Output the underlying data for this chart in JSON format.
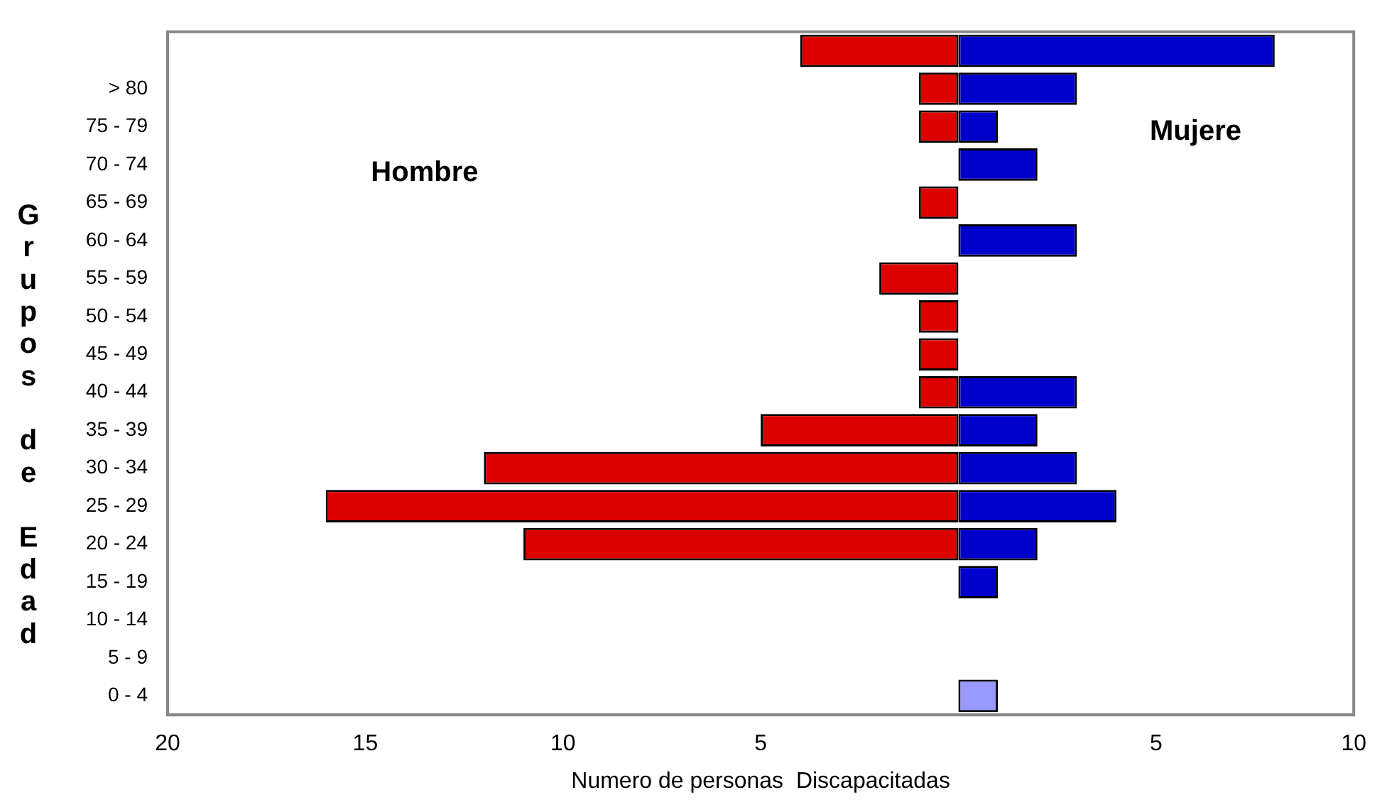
{
  "chart_data": {
    "type": "bar",
    "orientation": "horizontal",
    "stacked": true,
    "categories": [
      null,
      "> 80",
      "75 - 79",
      "70 - 74",
      "65 - 69",
      "60 - 64",
      "55 - 59",
      "50 - 54",
      "45 - 49",
      "40 - 44",
      "35 - 39",
      "30 - 34",
      "25 - 29",
      "20 - 24",
      "15 - 19",
      "10 - 14",
      "5 - 9",
      "0 - 4"
    ],
    "series": [
      {
        "color": "#dd0000",
        "values": [
          -4,
          -1,
          -1,
          0,
          -1,
          0,
          -2,
          -1,
          -1,
          -1,
          -5,
          -12,
          -16,
          -11,
          0,
          0,
          0,
          0
        ]
      },
      {
        "colors": [
          "#0000cc",
          "#0000cc",
          "#0000cc",
          "#0000cc",
          "#0000cc",
          "#0000cc",
          "#0000cc",
          "#0000cc",
          "#0000cc",
          "#0000cc",
          "#0000cc",
          "#0000cc",
          "#0000cc",
          "#0000cc",
          "#0000cc",
          "#0000cc",
          "#0000cc",
          "#9999ff"
        ],
        "values": [
          8,
          3,
          1,
          2,
          0,
          3,
          0,
          0,
          0,
          3,
          2,
          3,
          4,
          2,
          1,
          0,
          0,
          1
        ]
      }
    ],
    "xlim": [
      -20,
      10
    ],
    "xticks": [
      {
        "value": -20,
        "label": "20"
      },
      {
        "value": -15,
        "label": "15"
      },
      {
        "value": -10,
        "label": "10"
      },
      {
        "value": -5,
        "label": "5"
      },
      {
        "value": 5,
        "label": "5"
      },
      {
        "value": 10,
        "label": "10"
      }
    ],
    "xlabel": "Numero de personas  Discapacitadas",
    "ylabel": "Grupos de Edad",
    "annotations": [
      "Hombre",
      "Mujere"
    ],
    "grid": false,
    "legend": false
  }
}
